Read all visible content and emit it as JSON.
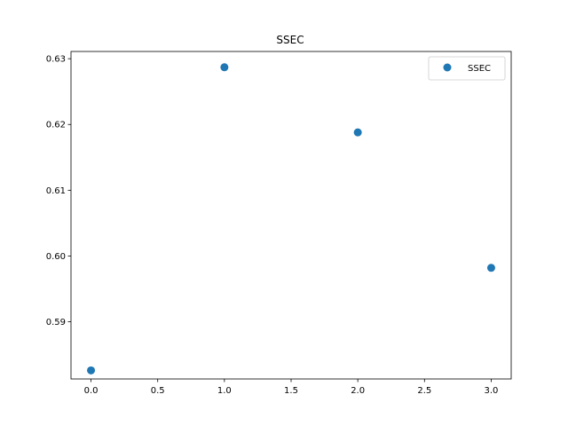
{
  "chart_data": {
    "type": "scatter",
    "title": "SSEC",
    "xlabel": "",
    "ylabel": "",
    "xlim": [
      -0.15,
      3.15
    ],
    "ylim": [
      0.5813,
      0.6311
    ],
    "x_ticks": [
      0.0,
      0.5,
      1.0,
      1.5,
      2.0,
      2.5,
      3.0
    ],
    "x_tick_labels": [
      "0.0",
      "0.5",
      "1.0",
      "1.5",
      "2.0",
      "2.5",
      "3.0"
    ],
    "y_ticks": [
      0.59,
      0.6,
      0.61,
      0.62,
      0.63
    ],
    "y_tick_labels": [
      "0.59",
      "0.60",
      "0.61",
      "0.62",
      "0.63"
    ],
    "grid": false,
    "legend_position": "top-right",
    "series": [
      {
        "name": "SSEC",
        "color": "#1f77b4",
        "x": [
          0,
          1,
          2,
          3
        ],
        "y": [
          0.5826,
          0.6287,
          0.6188,
          0.5982
        ]
      }
    ]
  }
}
